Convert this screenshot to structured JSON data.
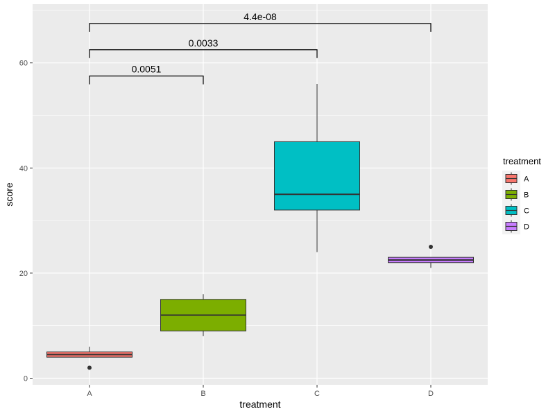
{
  "chart_data": {
    "type": "boxplot",
    "xlabel": "treatment",
    "ylabel": "score",
    "categories": [
      "A",
      "B",
      "C",
      "D"
    ],
    "ylim": [
      0,
      68
    ],
    "yticks": [
      0,
      20,
      40,
      60
    ],
    "grid": true,
    "legend": {
      "title": "treatment",
      "placement": "right",
      "entries": [
        "A",
        "B",
        "C",
        "D"
      ]
    },
    "colors": {
      "A": "#F8766D",
      "B": "#7CAE00",
      "C": "#00BFC4",
      "D": "#C77CFF"
    },
    "panel_background": "#EBEBEB",
    "boxes": [
      {
        "category": "A",
        "lower_whisker": 4,
        "q1": 4,
        "median": 4.5,
        "q3": 5,
        "upper_whisker": 6,
        "outliers": [
          2
        ]
      },
      {
        "category": "B",
        "lower_whisker": 8,
        "q1": 9,
        "median": 12,
        "q3": 15,
        "upper_whisker": 16,
        "outliers": []
      },
      {
        "category": "C",
        "lower_whisker": 24,
        "q1": 32,
        "median": 35,
        "q3": 45,
        "upper_whisker": 56,
        "outliers": []
      },
      {
        "category": "D",
        "lower_whisker": 21,
        "q1": 22,
        "median": 22.5,
        "q3": 23,
        "upper_whisker": 23,
        "outliers": [
          25
        ]
      }
    ],
    "comparisons": [
      {
        "group1": "A",
        "group2": "B",
        "label": "0.0051",
        "y": 57.5
      },
      {
        "group1": "A",
        "group2": "C",
        "label": "0.0033",
        "y": 62.5
      },
      {
        "group1": "A",
        "group2": "D",
        "label": "4.4e-08",
        "y": 67.5
      }
    ]
  }
}
